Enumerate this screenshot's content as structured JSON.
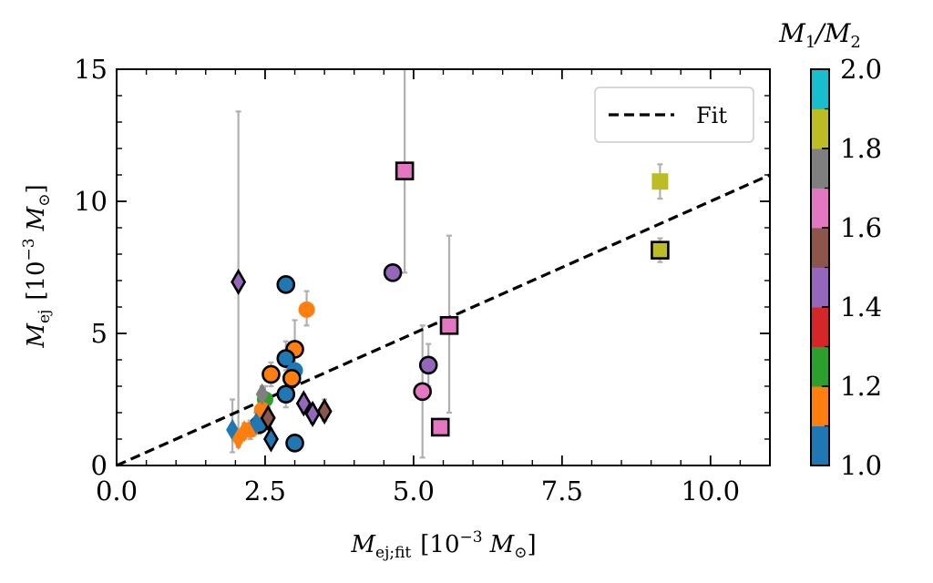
{
  "chart_data": {
    "type": "scatter",
    "xlabel": {
      "main": "M",
      "sub": "ej;fit",
      "unit_pre": "[10",
      "unit_exp": "−3",
      "unit_sym": "M",
      "unit_sub": "⊙",
      "unit_post": "]"
    },
    "ylabel": {
      "main": "M",
      "sub": "ej",
      "unit_pre": "[10",
      "unit_exp": "−3",
      "unit_sym": "M",
      "unit_sub": "⊙",
      "unit_post": "]"
    },
    "xlim": [
      0,
      11
    ],
    "ylim": [
      0,
      15
    ],
    "x_ticks": [
      0.0,
      2.5,
      5.0,
      7.5,
      10.0
    ],
    "x_tick_labels": [
      "0.0",
      "2.5",
      "5.0",
      "7.5",
      "10.0"
    ],
    "y_ticks": [
      0,
      5,
      10,
      15
    ],
    "y_tick_labels": [
      "0",
      "5",
      "10",
      "15"
    ],
    "grid": false,
    "legend": {
      "position": "top-right",
      "entries": [
        {
          "label": "Fit",
          "style": "dashed-line",
          "color": "#000000"
        }
      ]
    },
    "fit_line": {
      "slope": 1.0,
      "intercept": 0.0,
      "style": "dashed",
      "color": "#000000"
    },
    "colorbar": {
      "title": {
        "a": "M",
        "a_sub": "1",
        "slash": "/",
        "b": "M",
        "b_sub": "2"
      },
      "range": [
        1.0,
        2.0
      ],
      "tick_labels": [
        "1.0",
        "1.2",
        "1.4",
        "1.6",
        "1.8",
        "2.0"
      ],
      "tick_values": [
        1.0,
        1.2,
        1.4,
        1.6,
        1.8,
        2.0
      ],
      "colors": [
        "#1f77b4",
        "#ff7f0e",
        "#2ca02c",
        "#d62728",
        "#9467bd",
        "#8c564b",
        "#e377c2",
        "#7f7f7f",
        "#bcbd22",
        "#17becf"
      ]
    },
    "points": [
      {
        "x": 4.85,
        "y": 11.15,
        "ylo": 7.3,
        "yhi": 15.0,
        "marker": "square",
        "edge": true,
        "color": "#e377c2"
      },
      {
        "x": 9.15,
        "y": 10.75,
        "ylo": 10.1,
        "yhi": 11.4,
        "marker": "square",
        "edge": false,
        "color": "#bcbd22"
      },
      {
        "x": 9.15,
        "y": 8.15,
        "ylo": 7.7,
        "yhi": 8.6,
        "marker": "square",
        "edge": true,
        "color": "#bcbd22"
      },
      {
        "x": 5.6,
        "y": 5.3,
        "ylo": 2.0,
        "yhi": 8.7,
        "marker": "square",
        "edge": true,
        "color": "#e377c2"
      },
      {
        "x": 5.45,
        "y": 1.45,
        "ylo": 1.2,
        "yhi": 1.7,
        "marker": "square",
        "edge": true,
        "color": "#e377c2"
      },
      {
        "x": 2.05,
        "y": 6.95,
        "ylo": 1.0,
        "yhi": 13.4,
        "marker": "diamond",
        "edge": true,
        "color": "#9467bd"
      },
      {
        "x": 4.65,
        "y": 7.3,
        "ylo": 7.2,
        "yhi": 7.4,
        "marker": "circle",
        "edge": true,
        "color": "#9467bd"
      },
      {
        "x": 5.25,
        "y": 3.8,
        "ylo": 3.0,
        "yhi": 4.6,
        "marker": "circle",
        "edge": true,
        "color": "#9467bd"
      },
      {
        "x": 5.15,
        "y": 2.8,
        "ylo": 0.3,
        "yhi": 5.3,
        "marker": "circle",
        "edge": true,
        "color": "#e377c2"
      },
      {
        "x": 2.85,
        "y": 6.85,
        "ylo": 6.6,
        "yhi": 7.1,
        "marker": "circle",
        "edge": true,
        "color": "#1f77b4"
      },
      {
        "x": 3.2,
        "y": 5.9,
        "ylo": 5.3,
        "yhi": 6.6,
        "marker": "circle",
        "edge": false,
        "color": "#ff7f0e"
      },
      {
        "x": 3.0,
        "y": 4.4,
        "ylo": 3.5,
        "yhi": 5.5,
        "marker": "circle",
        "edge": true,
        "color": "#ff7f0e"
      },
      {
        "x": 2.85,
        "y": 4.05,
        "ylo": 3.6,
        "yhi": 4.7,
        "marker": "circle",
        "edge": true,
        "color": "#1f77b4"
      },
      {
        "x": 3.0,
        "y": 3.6,
        "ylo": 3.1,
        "yhi": 4.1,
        "marker": "circle",
        "edge": false,
        "color": "#1f77b4"
      },
      {
        "x": 2.6,
        "y": 3.45,
        "ylo": 3.0,
        "yhi": 3.9,
        "marker": "circle",
        "edge": true,
        "color": "#ff7f0e"
      },
      {
        "x": 2.95,
        "y": 3.3,
        "ylo": 2.8,
        "yhi": 3.8,
        "marker": "circle",
        "edge": true,
        "color": "#ff7f0e"
      },
      {
        "x": 2.85,
        "y": 2.7,
        "ylo": 2.2,
        "yhi": 3.2,
        "marker": "circle",
        "edge": true,
        "color": "#1f77b4"
      },
      {
        "x": 2.5,
        "y": 2.5,
        "ylo": 2.0,
        "yhi": 3.0,
        "marker": "circle",
        "edge": false,
        "color": "#2ca02c"
      },
      {
        "x": 2.4,
        "y": 1.55,
        "ylo": 1.2,
        "yhi": 2.0,
        "marker": "circle",
        "edge": true,
        "color": "#1f77b4"
      },
      {
        "x": 3.0,
        "y": 0.85,
        "ylo": 0.6,
        "yhi": 1.1,
        "marker": "circle",
        "edge": true,
        "color": "#1f77b4"
      },
      {
        "x": 2.25,
        "y": 1.35,
        "ylo": 1.0,
        "yhi": 1.7,
        "marker": "circle",
        "edge": false,
        "color": "#ff7f0e"
      },
      {
        "x": 2.45,
        "y": 2.1,
        "ylo": 1.7,
        "yhi": 2.5,
        "marker": "circle",
        "edge": false,
        "color": "#ff7f0e"
      },
      {
        "x": 3.15,
        "y": 2.35,
        "ylo": 2.0,
        "yhi": 2.7,
        "marker": "diamond",
        "edge": true,
        "color": "#9467bd"
      },
      {
        "x": 3.3,
        "y": 1.95,
        "ylo": 1.6,
        "yhi": 2.3,
        "marker": "diamond",
        "edge": true,
        "color": "#9467bd"
      },
      {
        "x": 3.5,
        "y": 2.05,
        "ylo": 1.7,
        "yhi": 2.5,
        "marker": "diamond",
        "edge": true,
        "color": "#8c564b"
      },
      {
        "x": 2.6,
        "y": 1.0,
        "ylo": 0.7,
        "yhi": 1.3,
        "marker": "diamond",
        "edge": true,
        "color": "#1f77b4"
      },
      {
        "x": 1.95,
        "y": 1.35,
        "ylo": 0.5,
        "yhi": 2.5,
        "marker": "diamond",
        "edge": false,
        "color": "#1f77b4"
      },
      {
        "x": 2.05,
        "y": 1.0,
        "ylo": 0.7,
        "yhi": 1.3,
        "marker": "diamond",
        "edge": false,
        "color": "#ff7f0e"
      },
      {
        "x": 2.15,
        "y": 1.3,
        "ylo": 1.0,
        "yhi": 1.6,
        "marker": "diamond",
        "edge": false,
        "color": "#ff7f0e"
      },
      {
        "x": 2.55,
        "y": 1.8,
        "ylo": 1.4,
        "yhi": 2.2,
        "marker": "diamond",
        "edge": true,
        "color": "#8c564b"
      },
      {
        "x": 2.45,
        "y": 2.7,
        "ylo": 2.3,
        "yhi": 3.0,
        "marker": "diamond",
        "edge": false,
        "color": "#7f7f7f"
      },
      {
        "x": 2.35,
        "y": 1.6,
        "ylo": 1.2,
        "yhi": 2.0,
        "marker": "diamond",
        "edge": false,
        "color": "#1f77b4"
      }
    ]
  }
}
